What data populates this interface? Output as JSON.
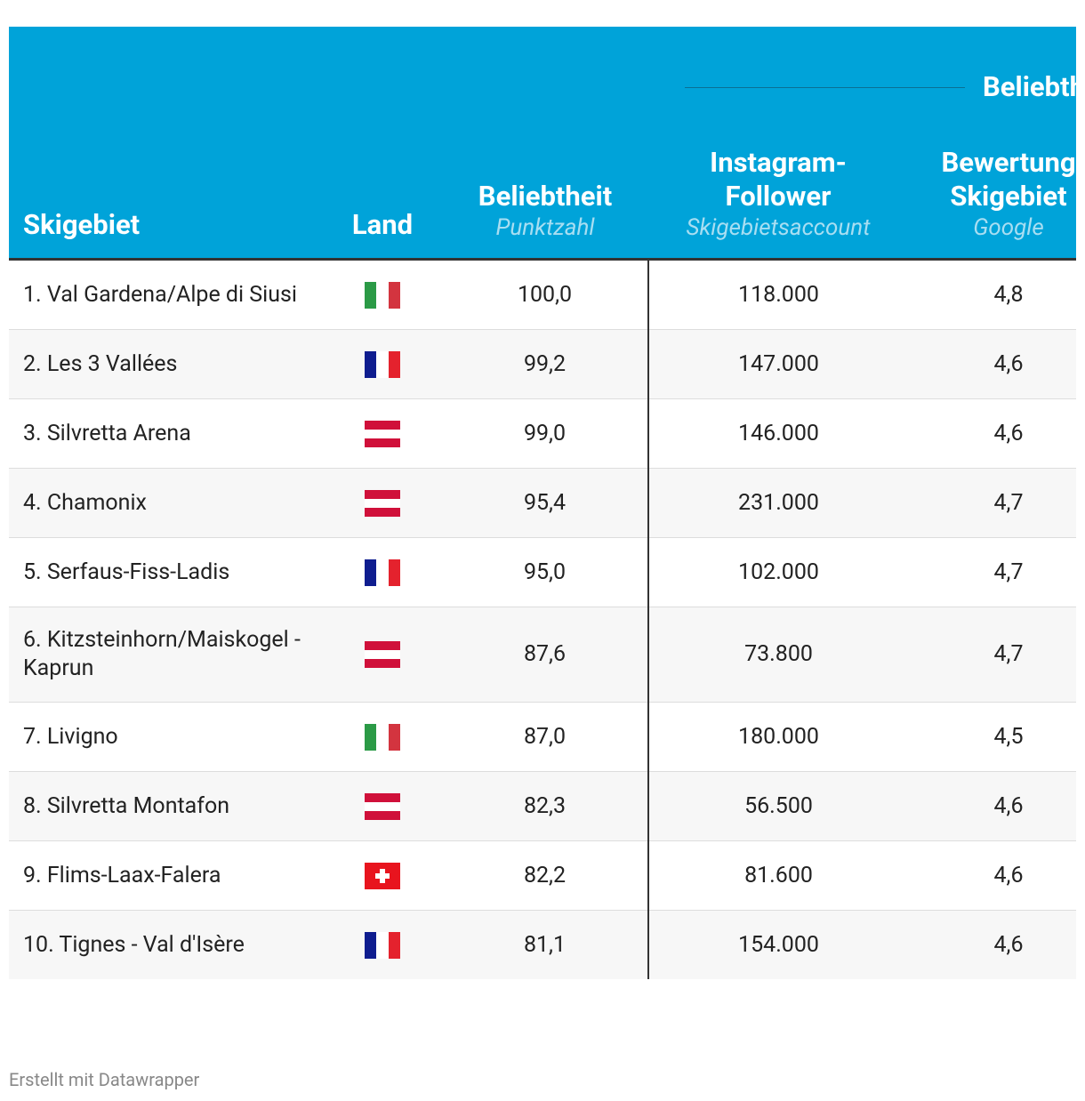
{
  "header": {
    "group_title": "Beliebth",
    "columns": [
      {
        "title": "Skigebiet"
      },
      {
        "title": "Land"
      },
      {
        "title": "Beliebtheit",
        "subtitle": "Punktzahl"
      },
      {
        "title": "Instagram-Follower",
        "subtitle": "Skigebietsaccount"
      },
      {
        "title": "Bewertung Skigebiet",
        "subtitle": "Google"
      }
    ]
  },
  "table": {
    "rows": [
      [
        "1. Val Gardena/Alpe di Siusi",
        "100,0",
        "118.000",
        "4,8"
      ],
      [
        "2. Les 3 Vallées",
        "99,2",
        "147.000",
        "4,6"
      ],
      [
        "3. Silvretta Arena",
        "99,0",
        "146.000",
        "4,6"
      ],
      [
        "4. Chamonix",
        "95,4",
        "231.000",
        "4,7"
      ],
      [
        "5. Serfaus-Fiss-Ladis",
        "95,0",
        "102.000",
        "4,7"
      ],
      [
        "6. Kitzsteinhorn/Maiskogel - Kaprun",
        "87,6",
        "73.800",
        "4,7"
      ],
      [
        "7. Livigno",
        "87,0",
        "180.000",
        "4,5"
      ],
      [
        "8. Silvretta Montafon",
        "82,3",
        "56.500",
        "4,6"
      ],
      [
        "9. Flims-Laax-Falera",
        "82,2",
        "81.600",
        "4,6"
      ],
      [
        "10. Tignes - Val d'Isère",
        "81,1",
        "154.000",
        "4,6"
      ]
    ]
  },
  "footer": "Erstellt mit Datawrapper"
}
